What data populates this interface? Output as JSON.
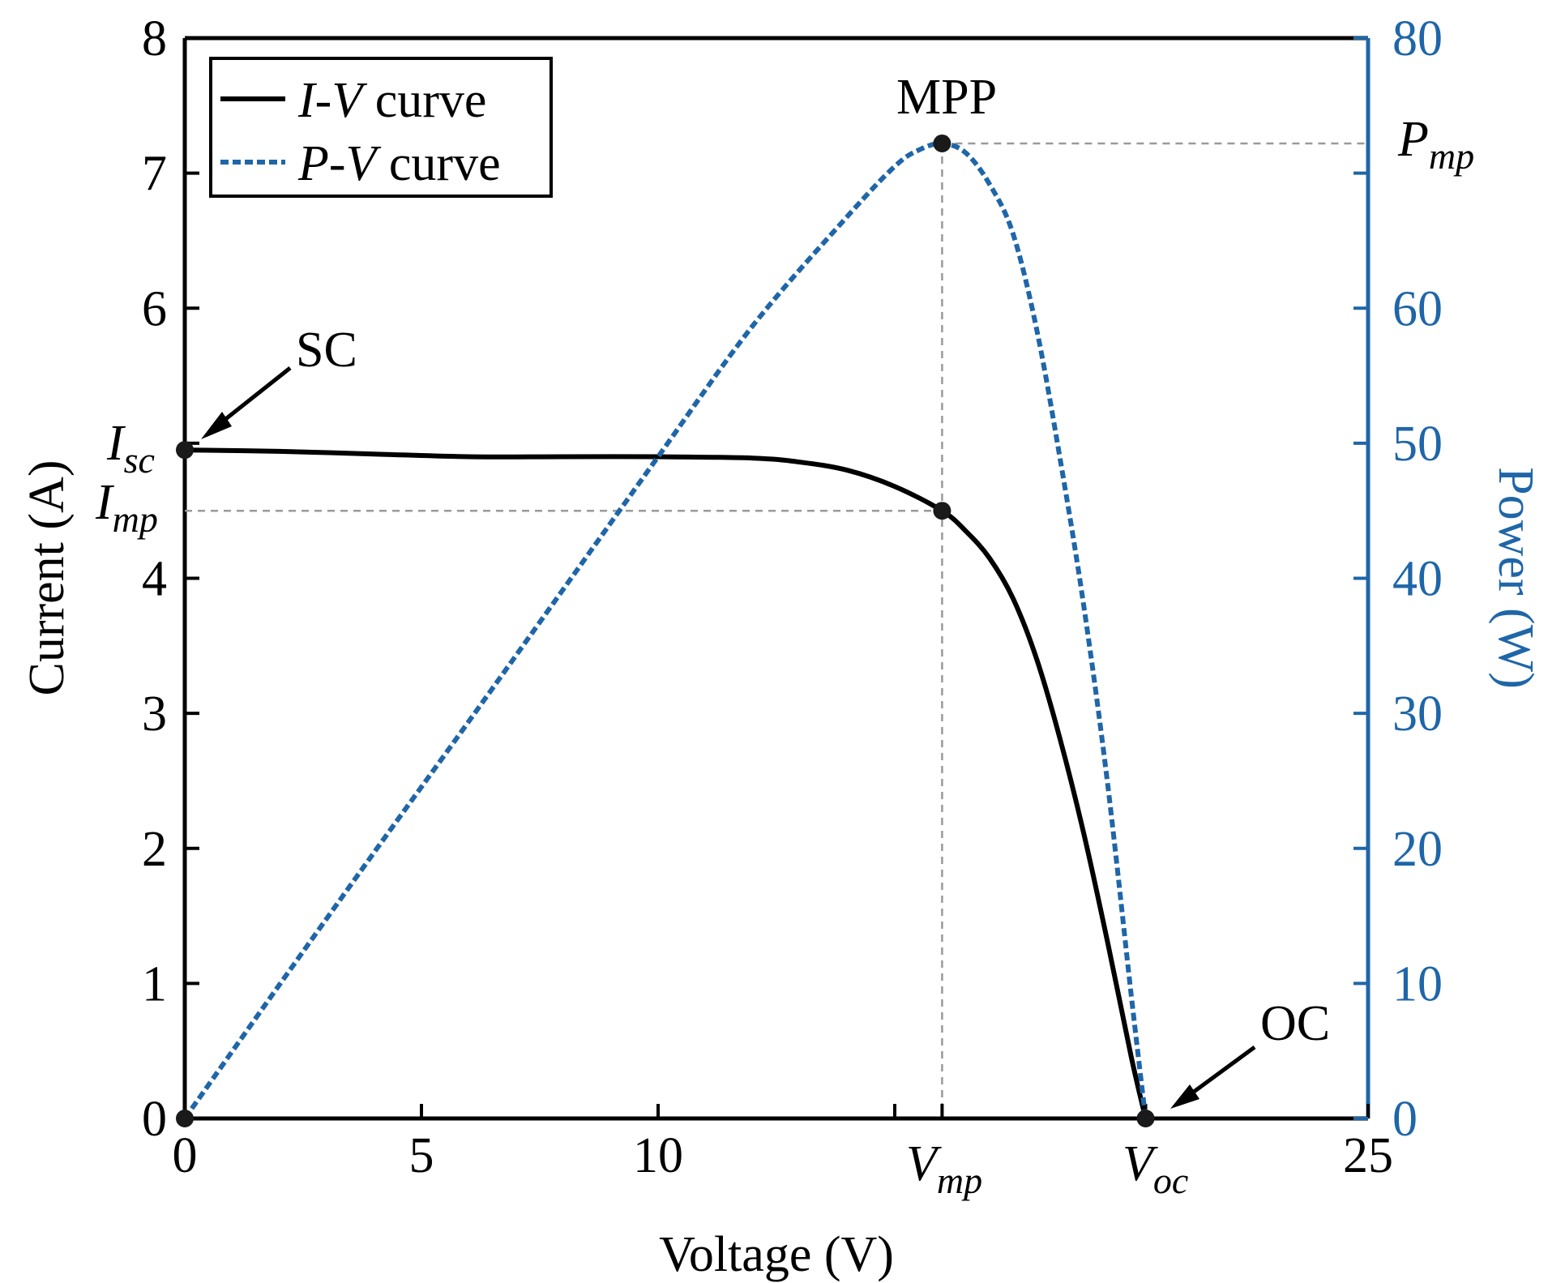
{
  "chart_data": {
    "type": "line",
    "xlabel": "Voltage (V)",
    "ylabel_left": "Current (A)",
    "ylabel_right": "Power (W)",
    "xlim": [
      0,
      25
    ],
    "ylim_left": [
      0,
      8
    ],
    "ylim_right": [
      0,
      80
    ],
    "x_ticks": [
      {
        "value": 0,
        "label": "0"
      },
      {
        "value": 5,
        "label": "5"
      },
      {
        "value": 10,
        "label": "10"
      },
      {
        "value": 25,
        "label": "25"
      }
    ],
    "x_minor_ticks": [
      15
    ],
    "y_left_ticks": [
      {
        "value": 0,
        "label": "0"
      },
      {
        "value": 1,
        "label": "1"
      },
      {
        "value": 2,
        "label": "2"
      },
      {
        "value": 3,
        "label": "3"
      },
      {
        "value": 4,
        "label": "4"
      },
      {
        "value": 6,
        "label": "6"
      },
      {
        "value": 7,
        "label": "7"
      },
      {
        "value": 8,
        "label": "8"
      }
    ],
    "y_left_minor_ticks": [
      5
    ],
    "y_right_ticks": [
      {
        "value": 0,
        "label": "0"
      },
      {
        "value": 10,
        "label": "10"
      },
      {
        "value": 20,
        "label": "20"
      },
      {
        "value": 30,
        "label": "30"
      },
      {
        "value": 40,
        "label": "40"
      },
      {
        "value": 50,
        "label": "50"
      },
      {
        "value": 60,
        "label": "60"
      },
      {
        "value": 80,
        "label": "80"
      }
    ],
    "special_labels": {
      "isc": {
        "main": "I",
        "sub": "sc",
        "value": 4.95
      },
      "imp": {
        "main": "I",
        "sub": "mp",
        "value": 4.5
      },
      "vmp": {
        "main": "V",
        "sub": "mp",
        "value": 16
      },
      "voc": {
        "main": "V",
        "sub": "oc",
        "value": 20.3
      },
      "pmp": {
        "main": "P",
        "sub": "mp",
        "value": 72.2
      }
    },
    "series": [
      {
        "name": "I-V curve",
        "axis": "left",
        "color": "#000000",
        "style": "solid",
        "x": [
          0,
          2,
          4,
          6,
          8,
          10,
          12,
          13,
          14,
          15,
          16,
          16.5,
          17,
          17.5,
          18,
          18.5,
          19,
          19.5,
          20,
          20.3
        ],
        "y": [
          4.95,
          4.94,
          4.92,
          4.9,
          4.9,
          4.9,
          4.89,
          4.86,
          4.8,
          4.68,
          4.5,
          4.35,
          4.15,
          3.85,
          3.4,
          2.8,
          2.1,
          1.3,
          0.45,
          0
        ]
      },
      {
        "name": "P-V curve",
        "axis": "right",
        "color": "#1f66a8",
        "style": "dashed",
        "x": [
          0,
          2,
          4,
          6,
          8,
          10,
          12,
          14,
          15,
          15.5,
          16,
          16.5,
          17,
          17.5,
          18,
          18.5,
          19,
          19.5,
          20,
          20.3
        ],
        "y": [
          0,
          9.9,
          19.7,
          29.4,
          39.2,
          49,
          58.7,
          66.8,
          70.5,
          71.7,
          72.2,
          71.5,
          69.2,
          65.5,
          58.4,
          48.7,
          37.8,
          24.7,
          9.0,
          0
        ]
      }
    ],
    "points": [
      {
        "name": "SC",
        "x": 0,
        "y": 4.95,
        "axis": "left"
      },
      {
        "name": "MPP",
        "x": 16,
        "y": 72.2,
        "axis": "right"
      },
      {
        "name": "Imp point",
        "x": 16,
        "y": 4.5,
        "axis": "left"
      },
      {
        "name": "OC",
        "x": 20.3,
        "y": 0,
        "axis": "left"
      },
      {
        "name": "Origin",
        "x": 0,
        "y": 0,
        "axis": "left"
      }
    ],
    "annotations": {
      "sc": "SC",
      "mpp": "MPP",
      "oc": "OC"
    },
    "legend": {
      "placement": "top-left",
      "entries": [
        {
          "main": "I",
          "sep": "-",
          "second": "V",
          "rest": " curve",
          "series": "I-V curve"
        },
        {
          "main": "P",
          "sep": "-",
          "second": "V",
          "rest": " curve",
          "series": "P-V curve"
        }
      ]
    }
  },
  "colors": {
    "axis_left": "#000000",
    "axis_right": "#1f66a8",
    "guide": "#9a9a9a"
  }
}
